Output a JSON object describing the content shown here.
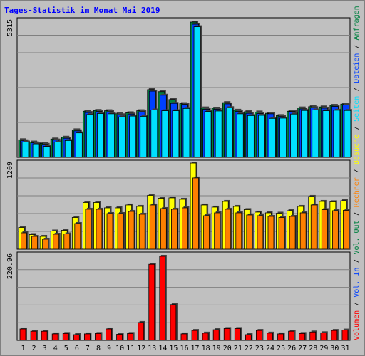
{
  "title": "Tages-Statistik im Monat Mai 2019",
  "colors": {
    "background": "#c0c0c0",
    "anfragen": "#008040",
    "dateien": "#0040ff",
    "seiten": "#00e0ff",
    "besuche": "#ffff00",
    "rechner": "#ff8000",
    "volumen": "#ff0000",
    "weekend_label": "#008040"
  },
  "chart_data": [
    {
      "type": "bar",
      "panel": "top",
      "ymax_label": "5315",
      "ylim": [
        0,
        5315
      ],
      "categories": [
        "1",
        "2",
        "3",
        "4",
        "5",
        "6",
        "7",
        "8",
        "9",
        "10",
        "11",
        "12",
        "13",
        "14",
        "15",
        "16",
        "17",
        "18",
        "19",
        "20",
        "21",
        "22",
        "23",
        "24",
        "25",
        "26",
        "27",
        "28",
        "29",
        "30",
        "31"
      ],
      "weekend_days": [
        "4",
        "5",
        "11",
        "12",
        "18",
        "19",
        "25",
        "26"
      ],
      "legend": [
        "Anfragen",
        "Dateien",
        "Seiten"
      ],
      "series": [
        {
          "name": "Anfragen",
          "values": [
            690,
            600,
            550,
            720,
            790,
            1080,
            1810,
            1840,
            1830,
            1710,
            1750,
            1830,
            2660,
            2580,
            2270,
            2110,
            5315,
            1940,
            1930,
            2150,
            1850,
            1790,
            1780,
            1730,
            1640,
            1810,
            1940,
            1990,
            1980,
            2040,
            2090
          ]
        },
        {
          "name": "Dateien",
          "values": [
            650,
            570,
            510,
            680,
            750,
            1040,
            1760,
            1800,
            1790,
            1670,
            1700,
            1790,
            2600,
            2440,
            2120,
            2080,
            5230,
            1890,
            1890,
            2100,
            1800,
            1730,
            1720,
            1710,
            1600,
            1800,
            1900,
            1950,
            1930,
            2000,
            2060
          ]
        },
        {
          "name": "Seiten",
          "values": [
            600,
            530,
            430,
            600,
            660,
            960,
            1680,
            1720,
            1710,
            1590,
            1620,
            1610,
            1860,
            1830,
            1830,
            1920,
            5130,
            1800,
            1820,
            1950,
            1710,
            1640,
            1650,
            1530,
            1540,
            1700,
            1840,
            1860,
            1830,
            1850,
            1840
          ]
        }
      ]
    },
    {
      "type": "bar",
      "panel": "middle",
      "ymax_label": "1209",
      "ylim": [
        0,
        1209
      ],
      "legend": [
        "Besuche",
        "Rechner"
      ],
      "series": [
        {
          "name": "Besuche",
          "values": [
            305,
            205,
            180,
            255,
            265,
            445,
            655,
            655,
            580,
            580,
            620,
            600,
            755,
            715,
            720,
            700,
            1209,
            620,
            590,
            670,
            600,
            555,
            520,
            510,
            505,
            540,
            600,
            740,
            670,
            665,
            680
          ]
        },
        {
          "name": "Rechner",
          "values": [
            230,
            180,
            140,
            210,
            215,
            360,
            560,
            560,
            500,
            500,
            530,
            490,
            620,
            570,
            560,
            580,
            1000,
            470,
            510,
            560,
            510,
            480,
            470,
            460,
            445,
            460,
            510,
            620,
            555,
            540,
            545
          ]
        }
      ]
    },
    {
      "type": "bar",
      "panel": "bottom",
      "ymax_label": "220.96",
      "ylim": [
        0,
        220.96
      ],
      "legend": [
        "Volumen",
        "Vol. In",
        "Vol. Out"
      ],
      "series": [
        {
          "name": "Volumen",
          "values": [
            30,
            24,
            24,
            17,
            18,
            15,
            17,
            18,
            30,
            16,
            18,
            47,
            200,
            221,
            94,
            17,
            26,
            19,
            28,
            31,
            31,
            15,
            26,
            19,
            17,
            24,
            18,
            22,
            20,
            26,
            27
          ]
        }
      ]
    }
  ],
  "legend_labels": {
    "top": [
      "Anfragen",
      " / ",
      "Dateien",
      " / ",
      "Seiten",
      " / "
    ],
    "middle": [
      "Besuche",
      " / ",
      "Rechner",
      " / "
    ],
    "bottom": [
      "Vol. Out",
      " / ",
      "Vol. In",
      " / ",
      "Volumen"
    ]
  }
}
